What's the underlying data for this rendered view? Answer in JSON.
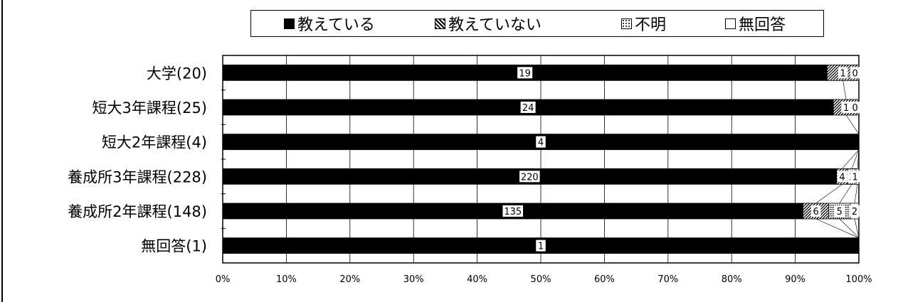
{
  "legend": {
    "items": [
      {
        "label": "教えている",
        "pattern": "solid"
      },
      {
        "label": "教えていない",
        "pattern": "hatch"
      },
      {
        "label": "不明",
        "pattern": "dots"
      },
      {
        "label": "無回答",
        "pattern": "empty"
      }
    ]
  },
  "chart_data": {
    "type": "bar",
    "orientation": "horizontal",
    "stacked": true,
    "normalized": true,
    "categories": [
      "大学(20)",
      "短大3年課程(25)",
      "短大2年課程(4)",
      "養成所3年課程(228)",
      "養成所2年課程(148)",
      "無回答(1)"
    ],
    "totals": [
      20,
      25,
      4,
      228,
      148,
      1
    ],
    "series": [
      {
        "name": "教えている",
        "values": [
          19,
          24,
          4,
          220,
          135,
          1
        ],
        "labels": [
          "19",
          "24",
          "4",
          "220",
          "135",
          "1"
        ]
      },
      {
        "name": "教えていない",
        "values": [
          1,
          1,
          0,
          4,
          6,
          0
        ],
        "labels": [
          "1",
          "1",
          "",
          "4",
          "6",
          ""
        ]
      },
      {
        "name": "不明",
        "values": [
          0,
          0,
          0,
          3,
          5,
          0
        ],
        "labels": [
          "",
          "",
          "",
          "3",
          "5",
          ""
        ]
      },
      {
        "name": "無回答",
        "values": [
          0,
          0,
          0,
          1,
          2,
          0
        ],
        "labels": [
          "0",
          "0",
          "",
          "1",
          "2",
          ""
        ]
      }
    ],
    "xticks": [
      "0%",
      "10%",
      "20%",
      "30%",
      "40%",
      "50%",
      "60%",
      "70%",
      "80%",
      "90%",
      "100%"
    ],
    "xlim": [
      0,
      100
    ],
    "grid": true,
    "legend_position": "top"
  }
}
